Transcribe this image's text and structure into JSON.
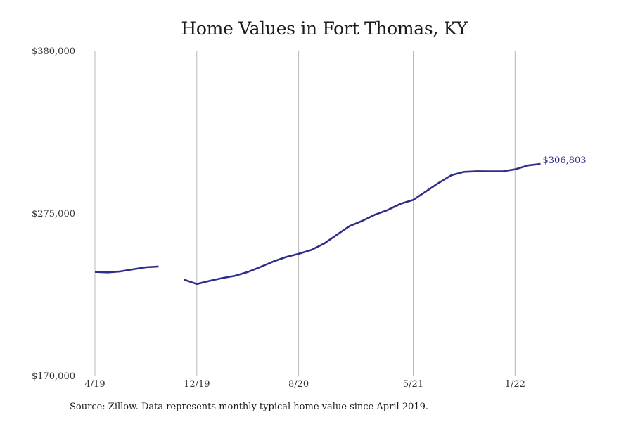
{
  "chart_data": {
    "type": "line",
    "title": "Home Values in Fort Thomas, KY",
    "xlabel": "",
    "ylabel": "",
    "x_tick_labels": [
      "4/19",
      "12/19",
      "8/20",
      "5/21",
      "1/22"
    ],
    "y_tick_labels": [
      "$380,000",
      "$275,000",
      "$170,000"
    ],
    "y_ticks": [
      380000,
      275000,
      170000
    ],
    "ylim": [
      170000,
      380000
    ],
    "grid": "vertical",
    "line_color": "#2e2e8a",
    "x_start": "2019-04",
    "x_end": "2022-05",
    "series": [
      {
        "points": [
          {
            "x": "2019-04",
            "y": 237000
          },
          {
            "x": "2019-05",
            "y": 236700
          },
          {
            "x": "2019-06",
            "y": 237300
          },
          {
            "x": "2019-07",
            "y": 238700
          },
          {
            "x": "2019-08",
            "y": 240000
          },
          {
            "x": "2019-09",
            "y": 240500
          },
          {
            "x": "2019-10",
            "y": null
          },
          {
            "x": "2019-11",
            "y": 232000
          },
          {
            "x": "2019-12",
            "y": 229200
          },
          {
            "x": "2020-01",
            "y": 231200
          },
          {
            "x": "2020-02",
            "y": 233000
          },
          {
            "x": "2020-03",
            "y": 234500
          },
          {
            "x": "2020-04",
            "y": 236900
          },
          {
            "x": "2020-05",
            "y": 240200
          },
          {
            "x": "2020-06",
            "y": 243700
          },
          {
            "x": "2020-07",
            "y": 246600
          },
          {
            "x": "2020-08",
            "y": 248700
          },
          {
            "x": "2020-09",
            "y": 251200
          },
          {
            "x": "2020-10",
            "y": 255300
          },
          {
            "x": "2020-11",
            "y": 261000
          },
          {
            "x": "2020-12",
            "y": 266600
          },
          {
            "x": "2021-01",
            "y": 270000
          },
          {
            "x": "2021-02",
            "y": 274000
          },
          {
            "x": "2021-03",
            "y": 277000
          },
          {
            "x": "2021-04",
            "y": 281000
          },
          {
            "x": "2021-05",
            "y": 283500
          },
          {
            "x": "2021-06",
            "y": 289000
          },
          {
            "x": "2021-07",
            "y": 294500
          },
          {
            "x": "2021-08",
            "y": 299500
          },
          {
            "x": "2021-09",
            "y": 301700
          },
          {
            "x": "2021-10",
            "y": 302100
          },
          {
            "x": "2021-11",
            "y": 302000
          },
          {
            "x": "2021-12",
            "y": 302000
          },
          {
            "x": "2022-01",
            "y": 303300
          },
          {
            "x": "2022-02",
            "y": 305800
          },
          {
            "x": "2022-03",
            "y": 306803
          }
        ]
      }
    ],
    "end_value_label": "$306,803",
    "source": "Source: Zillow. Data represents monthly typical home value since April 2019."
  }
}
